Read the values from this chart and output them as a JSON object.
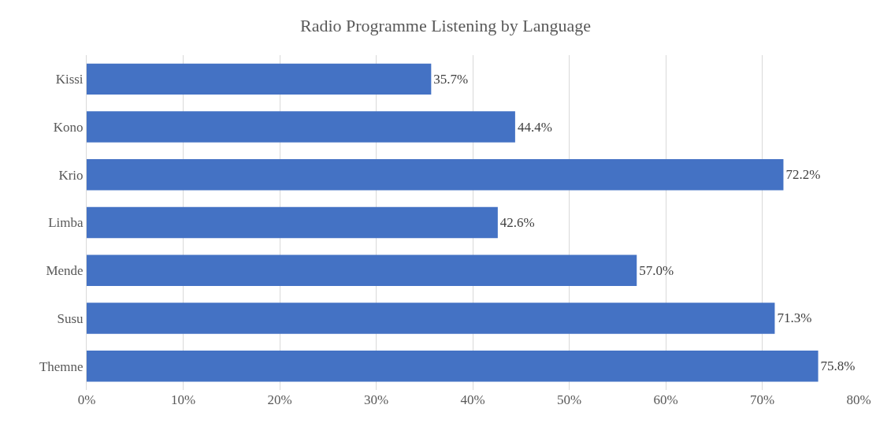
{
  "chart_data": {
    "type": "bar",
    "orientation": "horizontal",
    "title": "Radio Programme Listening by Language",
    "categories": [
      "Kissi",
      "Kono",
      "Krio",
      "Limba",
      "Mende",
      "Susu",
      "Themne"
    ],
    "values": [
      35.7,
      44.4,
      72.2,
      42.6,
      57.0,
      71.3,
      75.8
    ],
    "value_labels": [
      "35.7%",
      "44.4%",
      "72.2%",
      "42.6%",
      "57.0%",
      "71.3%",
      "75.8%"
    ],
    "color": "#4472c4",
    "xlim": [
      0,
      80
    ],
    "xticks": [
      {
        "value": 0,
        "label": "0%"
      },
      {
        "value": 10,
        "label": "10%"
      },
      {
        "value": 20,
        "label": "20%"
      },
      {
        "value": 30,
        "label": "30%"
      },
      {
        "value": 40,
        "label": "40%"
      },
      {
        "value": 50,
        "label": "50%"
      },
      {
        "value": 60,
        "label": "60%"
      },
      {
        "value": 70,
        "label": "70%"
      },
      {
        "value": 80,
        "label": "80%"
      }
    ],
    "grid": "x"
  }
}
